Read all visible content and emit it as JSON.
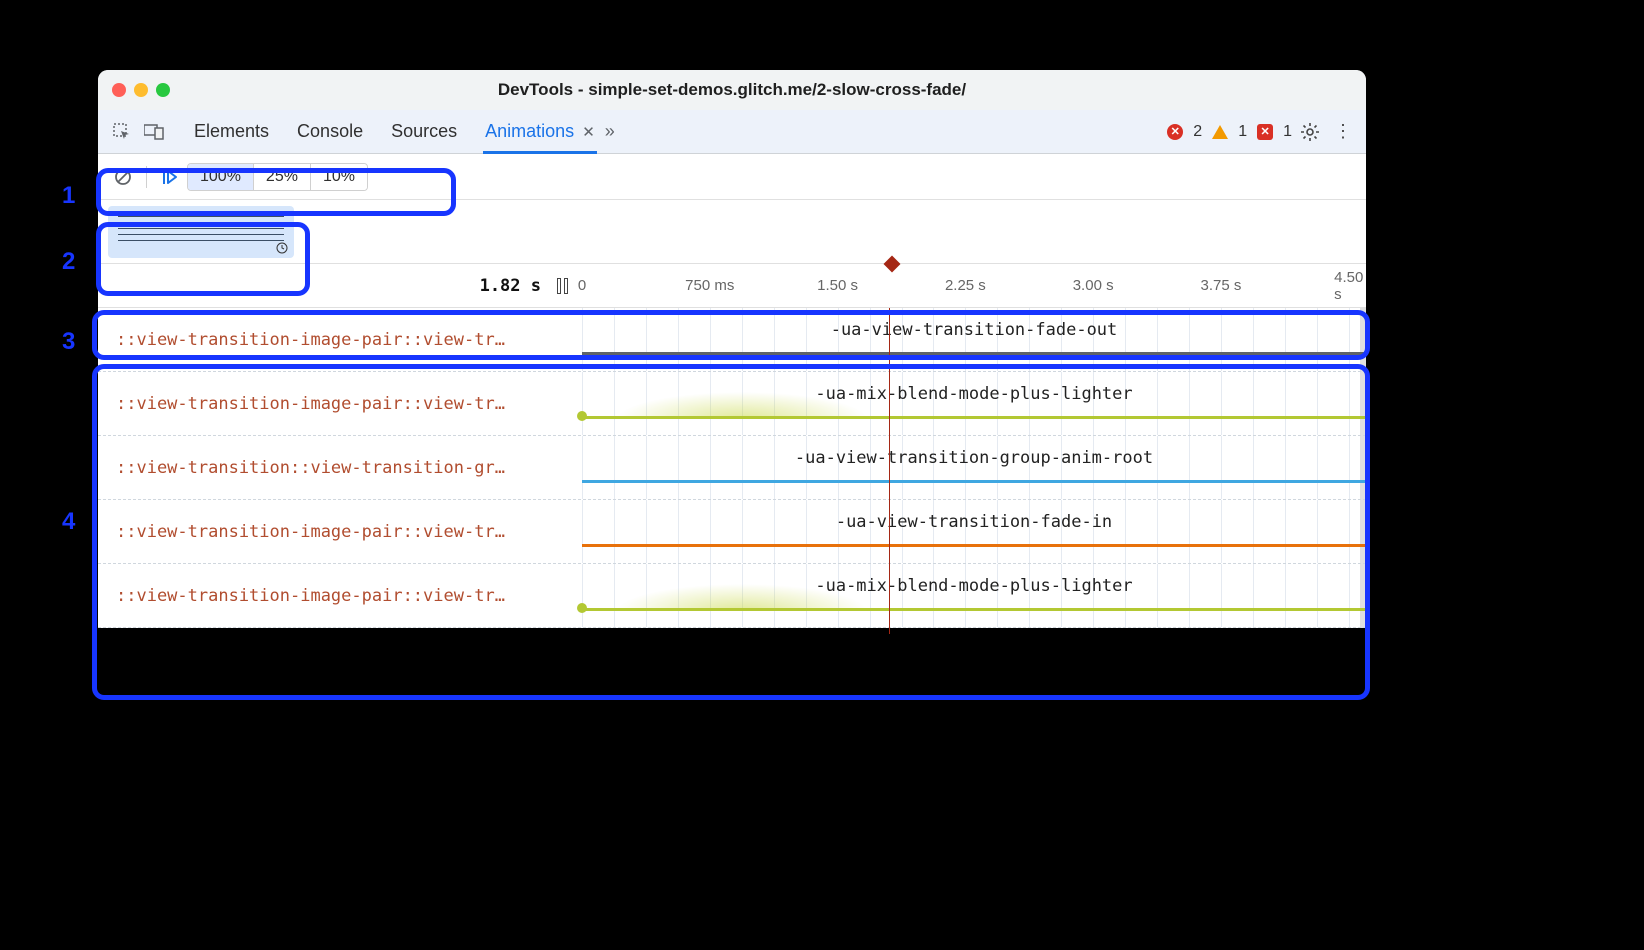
{
  "window": {
    "title": "DevTools - simple-set-demos.glitch.me/2-slow-cross-fade/",
    "traffic_colors": [
      "#ff5f57",
      "#febc2e",
      "#28c840"
    ]
  },
  "tabs": {
    "items": [
      "Elements",
      "Console",
      "Sources",
      "Animations"
    ],
    "active_index": 3
  },
  "status": {
    "error_count": "2",
    "warn_count": "1",
    "issue_count": "1",
    "error_color": "#d93025",
    "warn_color": "#f29900",
    "issue_color": "#d93025"
  },
  "controls": {
    "speeds": [
      "100%",
      "25%",
      "10%"
    ],
    "active_speed_index": 0
  },
  "ruler": {
    "current_time": "1.82 s",
    "ticks": [
      {
        "label": "0",
        "pct": 0
      },
      {
        "label": "750 ms",
        "pct": 16.3
      },
      {
        "label": "1.50 s",
        "pct": 32.6
      },
      {
        "label": "2.25 s",
        "pct": 48.9
      },
      {
        "label": "3.00 s",
        "pct": 65.2
      },
      {
        "label": "3.75 s",
        "pct": 81.5
      },
      {
        "label": "4.50 s",
        "pct": 97.8
      }
    ],
    "playhead_pct": 39.5
  },
  "grid": {
    "minor_pct": [
      0,
      4.08,
      8.15,
      12.23,
      16.3,
      20.38,
      24.46,
      28.53,
      32.6,
      36.68,
      40.76,
      44.83,
      48.9,
      52.98,
      57.06,
      61.13,
      65.2,
      69.28,
      73.36,
      77.43,
      81.5,
      85.58,
      89.66,
      93.73,
      97.8
    ]
  },
  "tracks": [
    {
      "label": "::view-transition-image-pair::view-tr…",
      "name": "-ua-view-transition-fade-out",
      "color": "#5f6368",
      "dot": false,
      "ease": false
    },
    {
      "label": "::view-transition-image-pair::view-tr…",
      "name": "-ua-mix-blend-mode-plus-lighter",
      "color": "#b3c833",
      "dot": true,
      "ease": true
    },
    {
      "label": "::view-transition::view-transition-gr…",
      "name": "-ua-view-transition-group-anim-root",
      "color": "#3fa7e1",
      "dot": false,
      "ease": false
    },
    {
      "label": "::view-transition-image-pair::view-tr…",
      "name": "-ua-view-transition-fade-in",
      "color": "#e8710a",
      "dot": false,
      "ease": false
    },
    {
      "label": "::view-transition-image-pair::view-tr…",
      "name": "-ua-mix-blend-mode-plus-lighter",
      "color": "#b3c833",
      "dot": true,
      "ease": true
    }
  ],
  "annotations": {
    "labels": [
      "1",
      "2",
      "3",
      "4"
    ]
  }
}
